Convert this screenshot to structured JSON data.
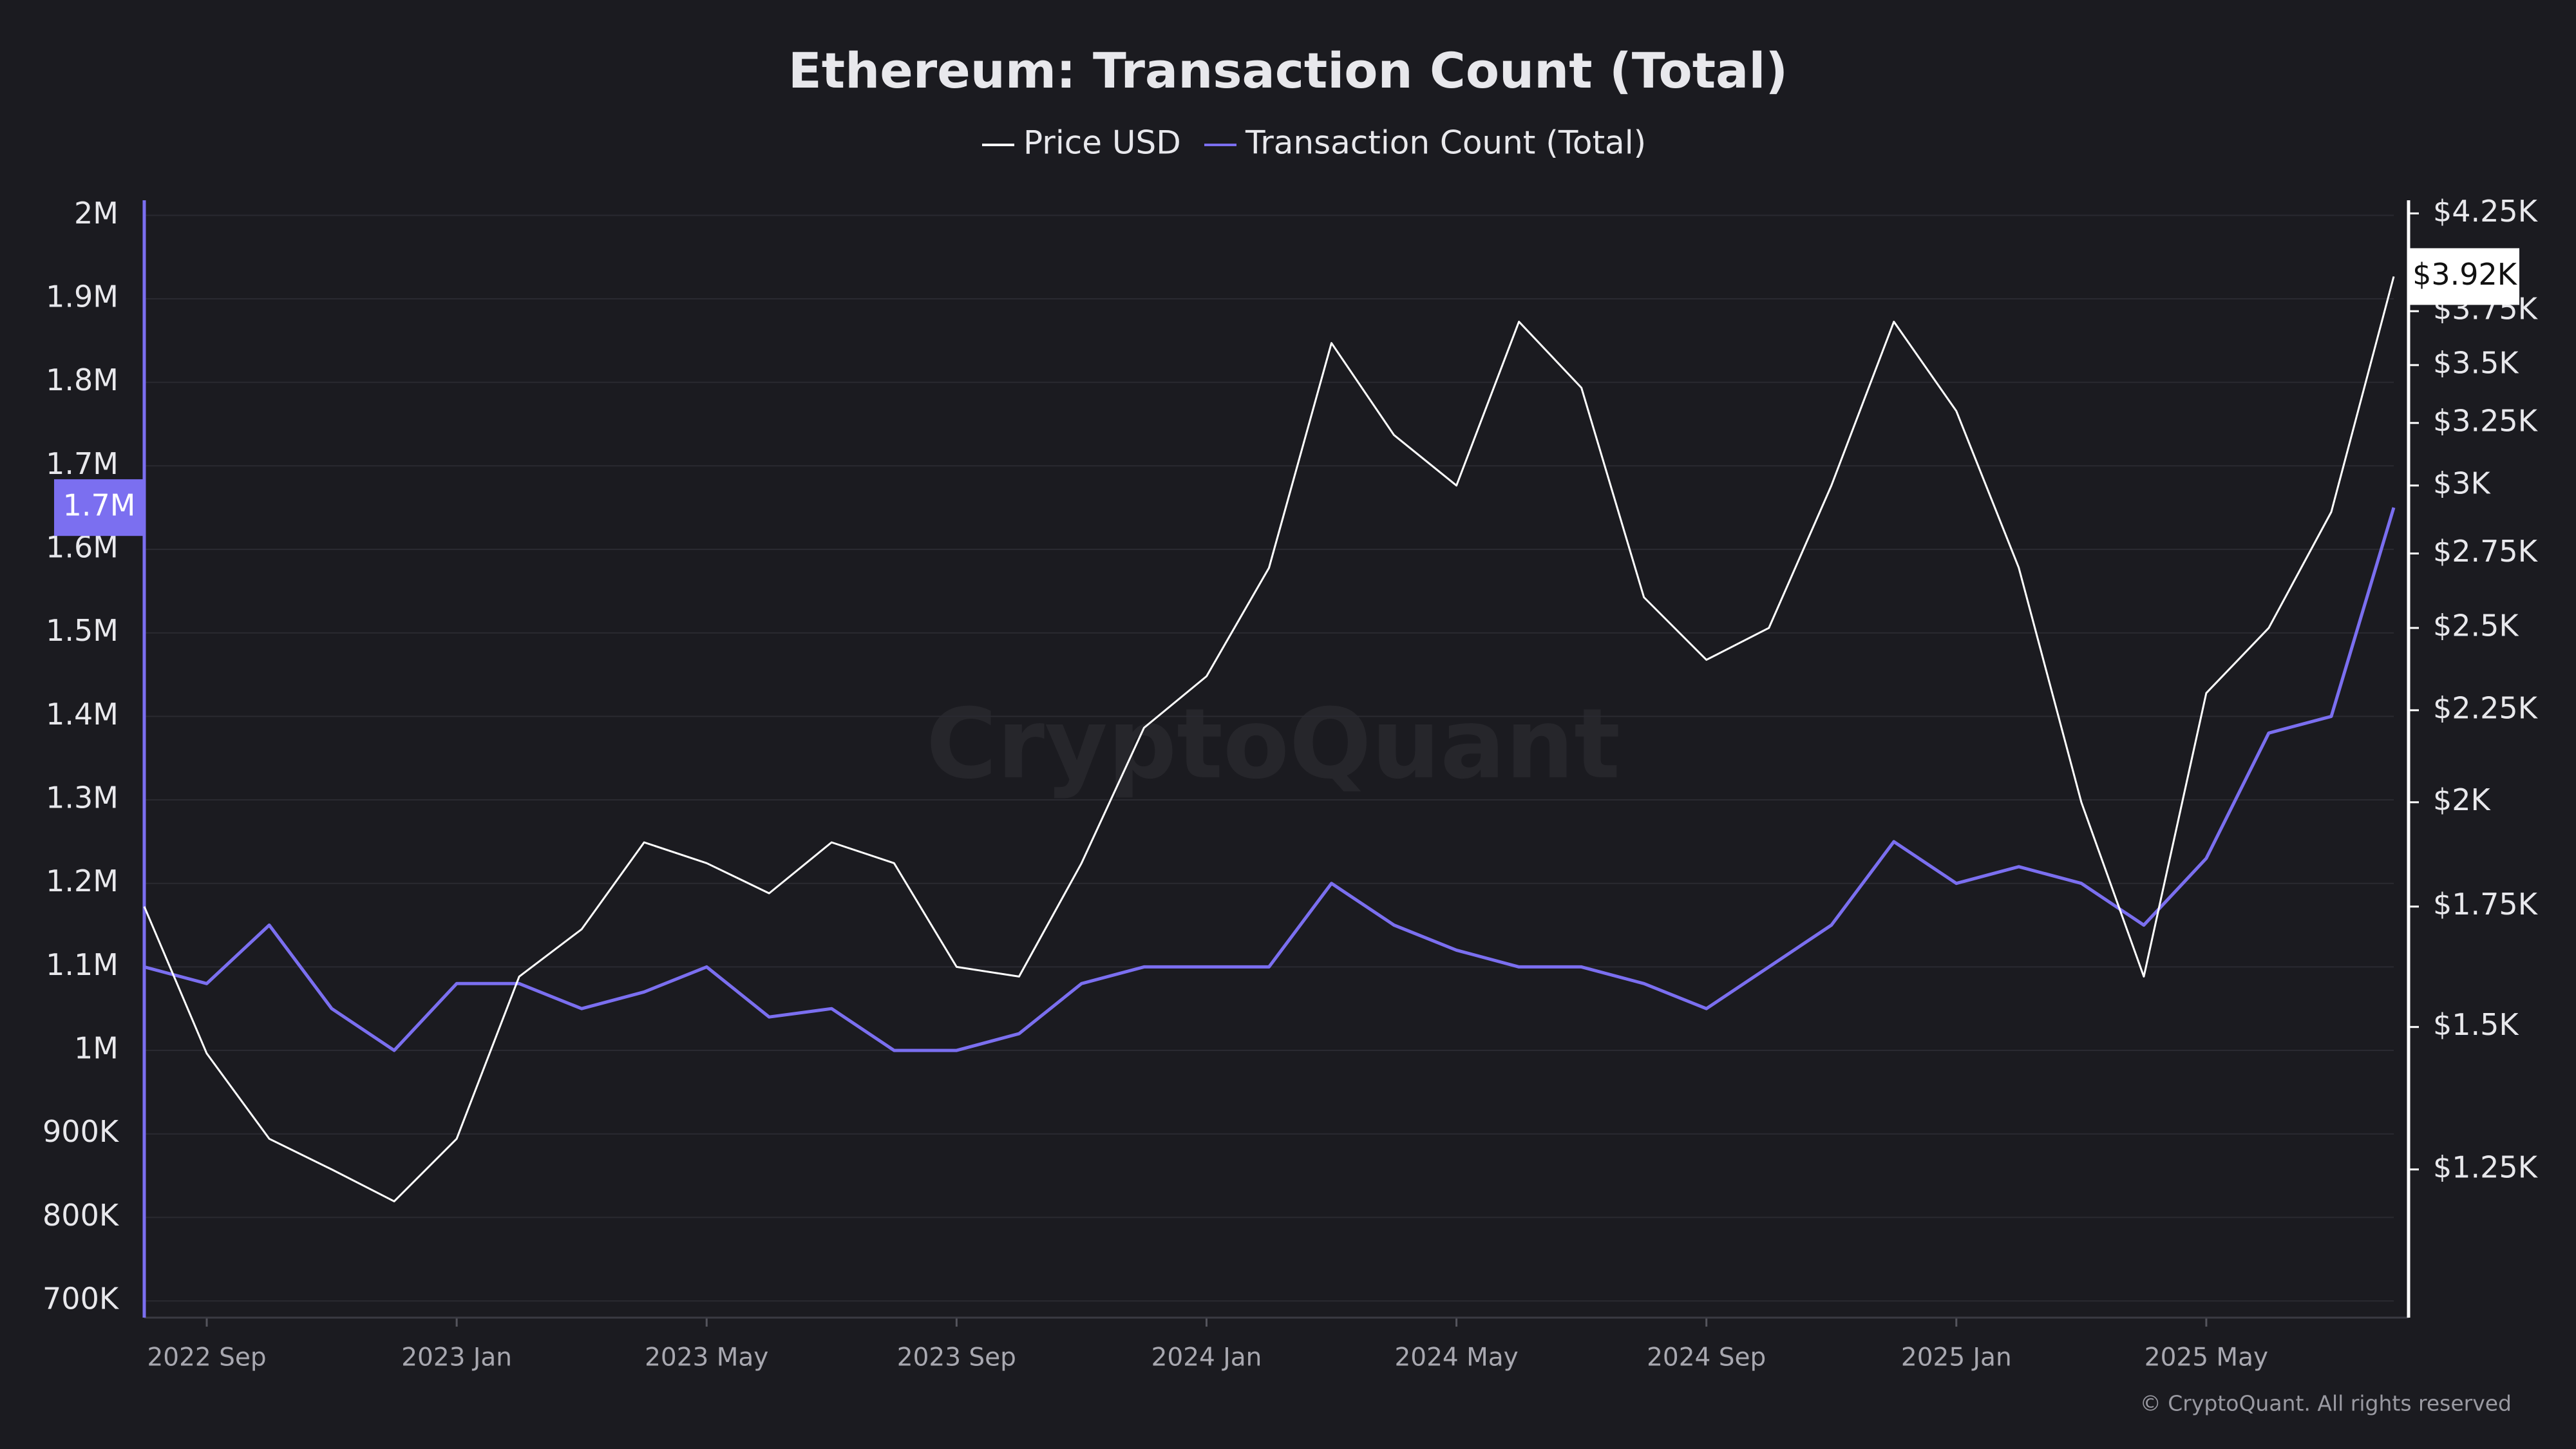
{
  "chart_data": {
    "type": "line",
    "title": "Ethereum: Transaction Count (Total)",
    "watermark": "CryptoQuant",
    "copyright": "© CryptoQuant. All rights reserved",
    "x": [
      "2022-08",
      "2022-09",
      "2022-10",
      "2022-11",
      "2022-12",
      "2023-01",
      "2023-02",
      "2023-03",
      "2023-04",
      "2023-05",
      "2023-06",
      "2023-07",
      "2023-08",
      "2023-09",
      "2023-10",
      "2023-11",
      "2023-12",
      "2024-01",
      "2024-02",
      "2024-03",
      "2024-04",
      "2024-05",
      "2024-06",
      "2024-07",
      "2024-08",
      "2024-09",
      "2024-10",
      "2024-11",
      "2024-12",
      "2025-01",
      "2025-02",
      "2025-03",
      "2025-04",
      "2025-05",
      "2025-06",
      "2025-07",
      "2025-08"
    ],
    "xlim": [
      "2022-08",
      "2025-08"
    ],
    "xticks": [
      {
        "value": "2022-09",
        "label": "2022 Sep"
      },
      {
        "value": "2023-01",
        "label": "2023 Jan"
      },
      {
        "value": "2023-05",
        "label": "2023 May"
      },
      {
        "value": "2023-09",
        "label": "2023 Sep"
      },
      {
        "value": "2024-01",
        "label": "2024 Jan"
      },
      {
        "value": "2024-05",
        "label": "2024 May"
      },
      {
        "value": "2024-09",
        "label": "2024 Sep"
      },
      {
        "value": "2025-01",
        "label": "2025 Jan"
      },
      {
        "value": "2025-05",
        "label": "2025 May"
      }
    ],
    "ylim": [
      680000,
      2018000
    ],
    "yticks": [
      {
        "value": 700000,
        "label": "700K"
      },
      {
        "value": 800000,
        "label": "800K"
      },
      {
        "value": 900000,
        "label": "900K"
      },
      {
        "value": 1000000,
        "label": "1M"
      },
      {
        "value": 1100000,
        "label": "1.1M"
      },
      {
        "value": 1200000,
        "label": "1.2M"
      },
      {
        "value": 1300000,
        "label": "1.3M"
      },
      {
        "value": 1400000,
        "label": "1.4M"
      },
      {
        "value": 1500000,
        "label": "1.5M"
      },
      {
        "value": 1600000,
        "label": "1.6M"
      },
      {
        "value": 1700000,
        "label": "1.7M"
      },
      {
        "value": 1800000,
        "label": "1.8M"
      },
      {
        "value": 1900000,
        "label": "1.9M"
      },
      {
        "value": 2000000,
        "label": "2M"
      }
    ],
    "y2lim": [
      1034,
      4322
    ],
    "y2scale": "log",
    "y2ticks": [
      {
        "value": 1250,
        "label": "$1.25K"
      },
      {
        "value": 1500,
        "label": "$1.5K"
      },
      {
        "value": 1750,
        "label": "$1.75K"
      },
      {
        "value": 2000,
        "label": "$2K"
      },
      {
        "value": 2250,
        "label": "$2.25K"
      },
      {
        "value": 2500,
        "label": "$2.5K"
      },
      {
        "value": 2750,
        "label": "$2.75K"
      },
      {
        "value": 3000,
        "label": "$3K"
      },
      {
        "value": 3250,
        "label": "$3.25K"
      },
      {
        "value": 3500,
        "label": "$3.5K"
      },
      {
        "value": 3750,
        "label": "$3.75K"
      },
      {
        "value": 4250,
        "label": "$4.25K"
      }
    ],
    "grid": true,
    "legend": "top",
    "series": [
      {
        "name": "Transaction Count (Total)",
        "color": "#7b6ff0",
        "axis": "y",
        "last_label": "1.7M",
        "values": [
          1100000,
          1080000,
          1150000,
          1050000,
          1000000,
          1080000,
          1080000,
          1050000,
          1070000,
          1100000,
          1040000,
          1050000,
          1000000,
          1000000,
          1020000,
          1080000,
          1100000,
          1100000,
          1100000,
          1200000,
          1150000,
          1120000,
          1100000,
          1100000,
          1080000,
          1050000,
          1100000,
          1150000,
          1250000,
          1200000,
          1220000,
          1200000,
          1150000,
          1230000,
          1380000,
          1400000,
          1650000
        ]
      },
      {
        "name": "Price USD",
        "color": "#ffffff",
        "axis": "y2",
        "last_label": "$3.92K",
        "values": [
          1750,
          1450,
          1300,
          1250,
          1200,
          1300,
          1600,
          1700,
          1900,
          1850,
          1780,
          1900,
          1850,
          1620,
          1600,
          1850,
          2200,
          2350,
          2700,
          3600,
          3200,
          3000,
          3700,
          3400,
          2600,
          2400,
          2500,
          3000,
          3700,
          3300,
          2700,
          2000,
          1600,
          2300,
          2500,
          2900,
          3920
        ]
      }
    ]
  }
}
